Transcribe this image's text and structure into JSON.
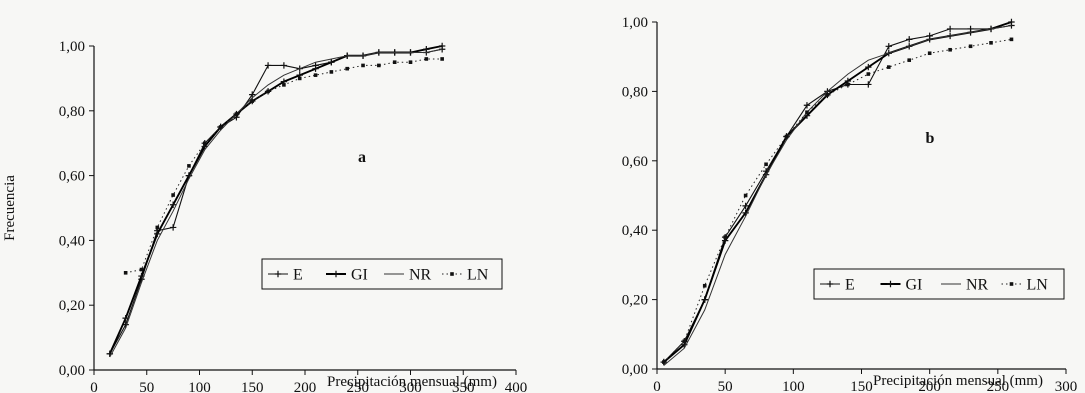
{
  "chart_data": [
    {
      "type": "line",
      "panel_label": "a",
      "xlabel": "Precipitación mensual (mm)",
      "ylabel": "Frecuencia",
      "xlim": [
        0,
        400
      ],
      "ylim": [
        0,
        1
      ],
      "xticks": [
        0,
        50,
        100,
        150,
        200,
        250,
        300,
        350,
        400
      ],
      "xtick_labels": [
        "0",
        "50",
        "100",
        "150",
        "200",
        "250",
        "300",
        "350",
        "400"
      ],
      "yticks": [
        0,
        0.2,
        0.4,
        0.6,
        0.8,
        1.0
      ],
      "ytick_labels": [
        "0,00",
        "0,20",
        "0,40",
        "0,60",
        "0,80",
        "1,00"
      ],
      "grid": false,
      "legend_position": "bottom-right",
      "series": [
        {
          "name": "E",
          "style": "plus-line",
          "x": [
            15,
            30,
            45,
            60,
            75,
            90,
            105,
            120,
            135,
            150,
            165,
            180,
            195,
            210,
            225,
            240,
            255,
            270,
            285,
            300,
            315,
            330
          ],
          "y": [
            0.05,
            0.14,
            0.28,
            0.43,
            0.44,
            0.6,
            0.7,
            0.75,
            0.78,
            0.85,
            0.94,
            0.94,
            0.93,
            0.94,
            0.95,
            0.97,
            0.97,
            0.98,
            0.98,
            0.98,
            0.98,
            0.99
          ]
        },
        {
          "name": "GI",
          "style": "plus-line-thick",
          "x": [
            15,
            30,
            45,
            60,
            75,
            90,
            105,
            120,
            135,
            150,
            165,
            180,
            195,
            210,
            225,
            240,
            255,
            270,
            285,
            300,
            315,
            330
          ],
          "y": [
            0.05,
            0.16,
            0.29,
            0.42,
            0.51,
            0.6,
            0.69,
            0.75,
            0.79,
            0.83,
            0.86,
            0.89,
            0.91,
            0.93,
            0.95,
            0.97,
            0.97,
            0.98,
            0.98,
            0.98,
            0.99,
            1.0
          ]
        },
        {
          "name": "NR",
          "style": "line",
          "x": [
            15,
            30,
            45,
            60,
            75,
            90,
            105,
            120,
            135,
            150,
            165,
            180,
            195,
            210,
            225,
            240,
            255,
            270,
            285,
            300,
            315,
            330
          ],
          "y": [
            0.04,
            0.13,
            0.27,
            0.4,
            0.49,
            0.59,
            0.68,
            0.74,
            0.79,
            0.84,
            0.88,
            0.91,
            0.93,
            0.95,
            0.96,
            0.97,
            0.97,
            0.98,
            0.98,
            0.98,
            0.98,
            0.99
          ]
        },
        {
          "name": "LN",
          "style": "dotted-squares",
          "x": [
            30,
            45,
            60,
            75,
            90,
            105,
            120,
            135,
            150,
            165,
            180,
            195,
            210,
            225,
            240,
            255,
            270,
            285,
            300,
            315,
            330
          ],
          "y": [
            0.3,
            0.31,
            0.44,
            0.54,
            0.63,
            0.7,
            0.75,
            0.79,
            0.83,
            0.86,
            0.88,
            0.9,
            0.91,
            0.92,
            0.93,
            0.94,
            0.94,
            0.95,
            0.95,
            0.96,
            0.96
          ]
        }
      ]
    },
    {
      "type": "line",
      "panel_label": "b",
      "xlabel": "Precipitación mensual (mm)",
      "ylabel": "",
      "xlim": [
        0,
        300
      ],
      "ylim": [
        0,
        1
      ],
      "xticks": [
        0,
        50,
        100,
        150,
        200,
        250,
        300
      ],
      "xtick_labels": [
        "0",
        "50",
        "100",
        "150",
        "200",
        "250",
        "300"
      ],
      "yticks": [
        0,
        0.2,
        0.4,
        0.6,
        0.8,
        1.0
      ],
      "ytick_labels": [
        "0,00",
        "0,20",
        "0,40",
        "0,60",
        "0,80",
        "1,00"
      ],
      "grid": false,
      "legend_position": "bottom-right",
      "series": [
        {
          "name": "E",
          "style": "plus-line",
          "x": [
            5,
            20,
            35,
            50,
            65,
            80,
            95,
            110,
            125,
            140,
            155,
            170,
            185,
            200,
            215,
            230,
            245,
            260
          ],
          "y": [
            0.02,
            0.08,
            0.2,
            0.38,
            0.47,
            0.57,
            0.67,
            0.76,
            0.8,
            0.82,
            0.82,
            0.93,
            0.95,
            0.96,
            0.98,
            0.98,
            0.98,
            0.99
          ]
        },
        {
          "name": "GI",
          "style": "plus-line-thick",
          "x": [
            5,
            20,
            35,
            50,
            65,
            80,
            95,
            110,
            125,
            140,
            155,
            170,
            185,
            200,
            215,
            230,
            245,
            260
          ],
          "y": [
            0.02,
            0.07,
            0.2,
            0.37,
            0.45,
            0.56,
            0.67,
            0.73,
            0.79,
            0.83,
            0.87,
            0.91,
            0.93,
            0.95,
            0.96,
            0.97,
            0.98,
            1.0
          ]
        },
        {
          "name": "NR",
          "style": "line",
          "x": [
            5,
            20,
            35,
            50,
            65,
            80,
            95,
            110,
            125,
            140,
            155,
            170,
            185,
            200,
            215,
            230,
            245,
            260
          ],
          "y": [
            0.01,
            0.06,
            0.17,
            0.33,
            0.44,
            0.56,
            0.66,
            0.74,
            0.8,
            0.85,
            0.89,
            0.91,
            0.93,
            0.95,
            0.96,
            0.97,
            0.98,
            0.99
          ]
        },
        {
          "name": "LN",
          "style": "dotted-squares",
          "x": [
            5,
            20,
            35,
            50,
            65,
            80,
            95,
            110,
            125,
            140,
            155,
            170,
            185,
            200,
            215,
            230,
            245,
            260
          ],
          "y": [
            0.02,
            0.08,
            0.24,
            0.38,
            0.5,
            0.59,
            0.67,
            0.74,
            0.79,
            0.82,
            0.85,
            0.87,
            0.89,
            0.91,
            0.92,
            0.93,
            0.94,
            0.95
          ]
        }
      ]
    }
  ]
}
